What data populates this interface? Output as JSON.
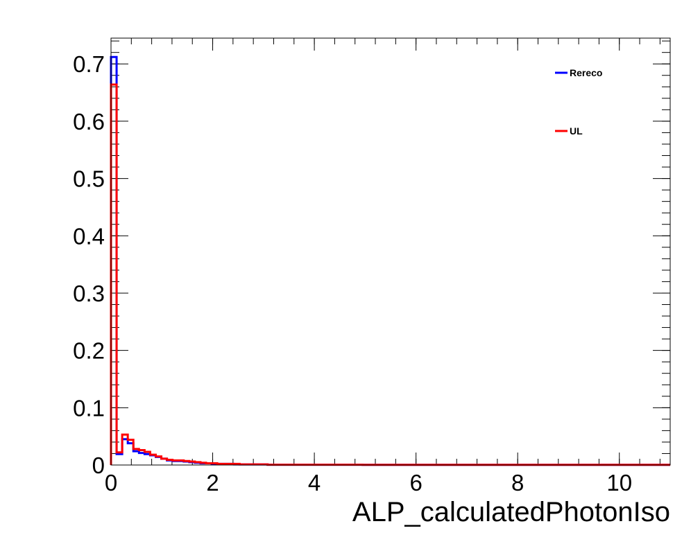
{
  "chart_data": {
    "type": "line",
    "style": "step-histogram",
    "title": "",
    "xlabel": "ALP_calculatedPhotonIso",
    "ylabel": "",
    "xlim": [
      0,
      11
    ],
    "ylim": [
      0,
      0.745
    ],
    "xticks": [
      0,
      2,
      4,
      6,
      8,
      10
    ],
    "yticks": [
      0,
      0.1,
      0.2,
      0.3,
      0.4,
      0.5,
      0.6,
      0.7
    ],
    "xtick_labels": [
      "0",
      "2",
      "4",
      "6",
      "8",
      "10"
    ],
    "ytick_labels": [
      "0",
      "0.1",
      "0.2",
      "0.3",
      "0.4",
      "0.5",
      "0.6",
      "0.7"
    ],
    "bin_width": 0.11,
    "bin_edges_start": 0,
    "grid": false,
    "legend_position": "top-right",
    "series": [
      {
        "name": "Rereco",
        "color": "#0000ff",
        "values": [
          0.712,
          0.019,
          0.045,
          0.038,
          0.024,
          0.021,
          0.019,
          0.017,
          0.014,
          0.011,
          0.008,
          0.007,
          0.007,
          0.006,
          0.005,
          0.004,
          0.003,
          0.003,
          0.002,
          0.002,
          0.002,
          0.002,
          0.001,
          0.001,
          0.001,
          0.001,
          0.001,
          0.001,
          0.0005,
          0.0005,
          0.0005,
          0.0005,
          0.0005,
          0.0005,
          0.0005,
          0.0005,
          0.0005,
          0.0005,
          0.0005,
          0.0005,
          0.0005,
          0.0005,
          0.0005,
          0.0005,
          0.0005,
          0.0003,
          0.0003,
          0.0003,
          0.0003,
          0.0003,
          0.0003,
          0.0003,
          0.0003,
          0.0003,
          0.0003,
          0.0003,
          0.0003,
          0.0003,
          0.0003,
          0.0003,
          0.0003,
          0.0003,
          0.0003,
          0.0003,
          0.0003,
          0.0003,
          0.0003,
          0.0003,
          0.0003,
          0.0003,
          0.0003,
          0.0003,
          0.0003,
          0.0003,
          0.0003,
          0.0003,
          0.0003,
          0.0003,
          0.0003,
          0.0003,
          0.0003,
          0.0003,
          0.0003,
          0.0003,
          0.0003,
          0.0003,
          0.0003,
          0.0003,
          0.0003,
          0.0003,
          0.0003,
          0.0003,
          0.0003,
          0.0003,
          0.0003,
          0.0003,
          0.0003,
          0.0003,
          0.0003,
          0.0003
        ]
      },
      {
        "name": "UL",
        "color": "#ff0000",
        "values": [
          0.664,
          0.022,
          0.053,
          0.044,
          0.028,
          0.026,
          0.023,
          0.018,
          0.015,
          0.011,
          0.009,
          0.008,
          0.008,
          0.007,
          0.006,
          0.005,
          0.004,
          0.003,
          0.003,
          0.002,
          0.002,
          0.002,
          0.002,
          0.001,
          0.001,
          0.001,
          0.001,
          0.001,
          0.0005,
          0.0005,
          0.0005,
          0.0005,
          0.0005,
          0.0005,
          0.0005,
          0.0005,
          0.0005,
          0.0005,
          0.0005,
          0.0005,
          0.0005,
          0.0005,
          0.0005,
          0.0005,
          0.0005,
          0.0003,
          0.0003,
          0.0003,
          0.0003,
          0.0003,
          0.0003,
          0.0003,
          0.0003,
          0.0003,
          0.0003,
          0.0003,
          0.0003,
          0.0003,
          0.0003,
          0.0003,
          0.0003,
          0.0003,
          0.0003,
          0.0003,
          0.0003,
          0.0003,
          0.0003,
          0.0003,
          0.0003,
          0.0003,
          0.0003,
          0.0003,
          0.0003,
          0.0003,
          0.0003,
          0.0003,
          0.0003,
          0.0003,
          0.0003,
          0.0003,
          0.0003,
          0.0003,
          0.0003,
          0.0003,
          0.0003,
          0.0003,
          0.0003,
          0.0003,
          0.0003,
          0.0003,
          0.0003,
          0.0003,
          0.0003,
          0.0003,
          0.0003,
          0.0003,
          0.0003,
          0.0003,
          0.0003,
          0.0003
        ]
      }
    ]
  }
}
